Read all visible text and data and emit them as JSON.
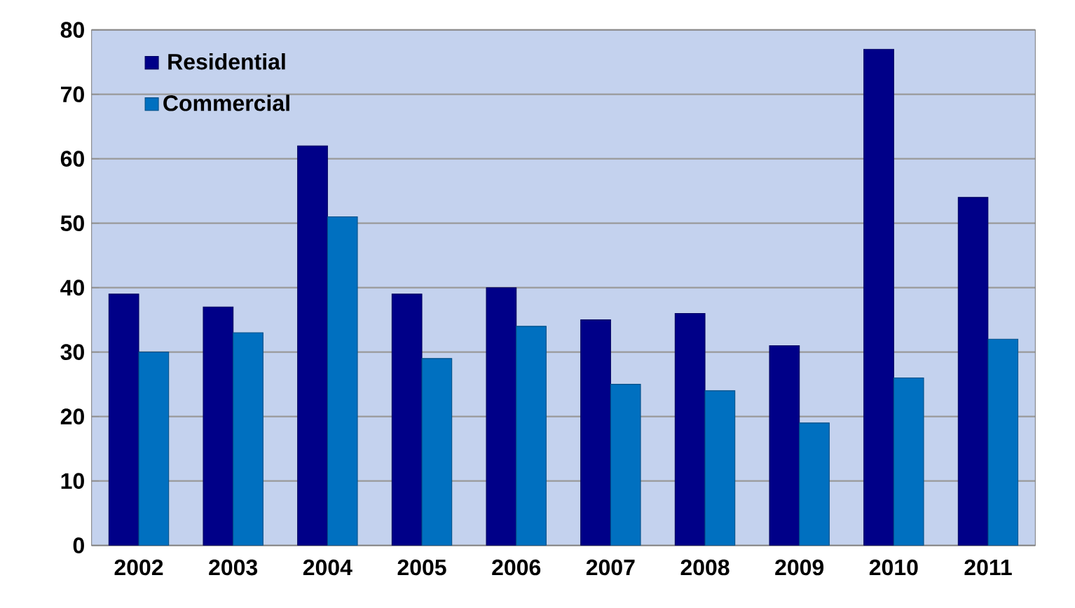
{
  "chart_data": {
    "type": "bar",
    "categories": [
      "2002",
      "2003",
      "2004",
      "2005",
      "2006",
      "2007",
      "2008",
      "2009",
      "2010",
      "2011"
    ],
    "series": [
      {
        "name": "Residential",
        "color": "#000088",
        "values": [
          39,
          37,
          62,
          39,
          40,
          35,
          36,
          31,
          77,
          54
        ]
      },
      {
        "name": "Commercial",
        "color": "#0070c0",
        "values": [
          30,
          33,
          51,
          29,
          34,
          25,
          24,
          19,
          26,
          32
        ]
      }
    ],
    "ylim": [
      0,
      80
    ],
    "yticks": [
      0,
      10,
      20,
      30,
      40,
      50,
      60,
      70,
      80
    ],
    "grid": "y",
    "legend": "top left"
  }
}
